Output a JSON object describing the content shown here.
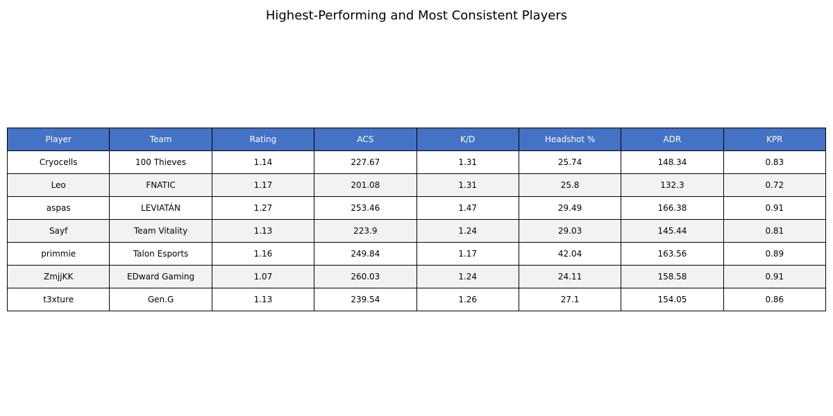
{
  "chart_data": {
    "type": "table",
    "title": "Highest-Performing and Most Consistent Players",
    "columns": [
      "Player",
      "Team",
      "Rating",
      "ACS",
      "K/D",
      "Headshot %",
      "ADR",
      "KPR"
    ],
    "rows": [
      [
        "Cryocells",
        "100 Thieves",
        "1.14",
        "227.67",
        "1.31",
        "25.74",
        "148.34",
        "0.83"
      ],
      [
        "Leo",
        "FNATIC",
        "1.17",
        "201.08",
        "1.31",
        "25.8",
        "132.3",
        "0.72"
      ],
      [
        "aspas",
        "LEVIATÁN",
        "1.27",
        "253.46",
        "1.47",
        "29.49",
        "166.38",
        "0.91"
      ],
      [
        "Sayf",
        "Team Vitality",
        "1.13",
        "223.9",
        "1.24",
        "29.03",
        "145.44",
        "0.81"
      ],
      [
        "primmie",
        "Talon Esports",
        "1.16",
        "249.84",
        "1.17",
        "42.04",
        "163.56",
        "0.89"
      ],
      [
        "ZmjjKK",
        "EDward Gaming",
        "1.07",
        "260.03",
        "1.24",
        "24.11",
        "158.58",
        "0.91"
      ],
      [
        "t3xture",
        "Gen.G",
        "1.13",
        "239.54",
        "1.26",
        "27.1",
        "154.05",
        "0.86"
      ]
    ],
    "header_color": "#4472c4",
    "header_text_color": "#ffffff",
    "row_colors": [
      "#ffffff",
      "#f2f2f2"
    ]
  }
}
